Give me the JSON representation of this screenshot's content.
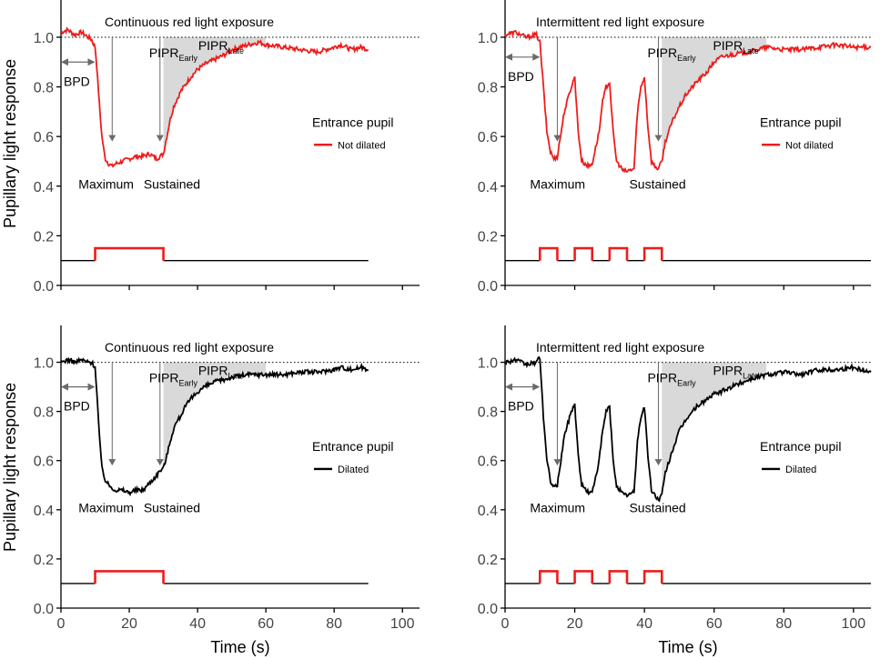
{
  "figure": {
    "ylabel": "Pupillary light response",
    "xlabel": "Time (s)",
    "reference_line": 1.0
  },
  "colors": {
    "red": "#ee1c1c",
    "black": "#000000",
    "shade": "#d9d9d9",
    "arrow": "#6a6a6a"
  },
  "chart_data": [
    {
      "type": "line",
      "panel": "top-left",
      "title": "Continuous red light exposure",
      "xlabel": "",
      "ylabel": "Pupillary light response",
      "xlim": [
        0,
        105
      ],
      "ylim": [
        0,
        1.15
      ],
      "xticks": [
        0,
        20,
        40,
        60,
        80,
        100
      ],
      "yticks": [
        "0.0",
        "0.2",
        "0.4",
        "0.6",
        "0.8",
        "1.0"
      ],
      "show_x_tick_labels": false,
      "legend": {
        "title": "Entrance pupil",
        "label": "Not dilated",
        "color": "red"
      },
      "series_color": "red",
      "x": [
        0,
        2,
        4,
        6,
        8,
        9,
        10,
        10.5,
        11,
        11.5,
        12,
        12.5,
        13,
        14,
        15,
        16,
        18,
        20,
        22,
        24,
        26,
        28,
        29,
        30,
        31,
        32,
        33,
        34,
        35,
        36,
        38,
        40,
        42,
        45,
        48,
        50,
        55,
        58,
        60,
        65,
        70,
        75,
        80,
        82,
        85,
        88,
        90
      ],
      "y": [
        1.02,
        1.03,
        1.01,
        1.02,
        1.0,
        0.99,
        0.96,
        0.88,
        0.78,
        0.68,
        0.6,
        0.55,
        0.51,
        0.49,
        0.48,
        0.49,
        0.5,
        0.51,
        0.52,
        0.52,
        0.53,
        0.51,
        0.52,
        0.53,
        0.6,
        0.67,
        0.72,
        0.75,
        0.78,
        0.8,
        0.84,
        0.87,
        0.89,
        0.91,
        0.93,
        0.95,
        0.97,
        0.98,
        0.97,
        0.96,
        0.95,
        0.94,
        0.96,
        0.97,
        0.95,
        0.96,
        0.95
      ],
      "stimulus": [
        [
          10,
          30
        ]
      ],
      "stimulus_baseline": 0.1,
      "stimulus_on_level": 0.15,
      "annotations": {
        "bpd": "BPD",
        "bpd_span": [
          0,
          10
        ],
        "bpd_y": 0.9,
        "maximum": "Maximum",
        "maximum_x": 15,
        "sustained": "Sustained",
        "sustained_x": 29,
        "pipr_early_main": "PIPR",
        "pipr_early_sub": "Early",
        "pipr_late_main": "PIPR",
        "pipr_late_sub": "Late",
        "shade_from": 30,
        "shade_to": 60
      }
    },
    {
      "type": "line",
      "panel": "top-right",
      "title": "Intermittent red light exposure",
      "xlabel": "",
      "ylabel": "",
      "xlim": [
        0,
        105
      ],
      "ylim": [
        0,
        1.15
      ],
      "xticks": [
        0,
        20,
        40,
        60,
        80,
        100
      ],
      "yticks": [
        "0.0",
        "0.2",
        "0.4",
        "0.6",
        "0.8",
        "1.0"
      ],
      "show_x_tick_labels": false,
      "legend": {
        "title": "Entrance pupil",
        "label": "Not dilated",
        "color": "red"
      },
      "series_color": "red",
      "x": [
        0,
        3,
        6,
        9,
        10,
        11,
        12,
        13,
        14,
        15,
        17,
        19,
        20,
        21,
        22,
        24,
        25,
        27,
        28,
        29,
        30,
        31,
        32,
        34,
        35,
        37,
        38,
        39,
        40,
        41,
        42,
        43,
        44,
        45,
        46,
        48,
        50,
        52,
        55,
        58,
        60,
        62,
        65,
        70,
        75,
        80,
        85,
        90,
        95,
        100,
        105
      ],
      "y": [
        1.01,
        1.02,
        1.0,
        1.01,
        0.98,
        0.8,
        0.62,
        0.54,
        0.51,
        0.52,
        0.7,
        0.8,
        0.84,
        0.62,
        0.5,
        0.48,
        0.49,
        0.62,
        0.74,
        0.8,
        0.82,
        0.62,
        0.5,
        0.46,
        0.46,
        0.47,
        0.7,
        0.8,
        0.84,
        0.64,
        0.5,
        0.48,
        0.47,
        0.5,
        0.58,
        0.66,
        0.72,
        0.77,
        0.82,
        0.86,
        0.9,
        0.92,
        0.93,
        0.94,
        0.96,
        0.95,
        0.95,
        0.96,
        0.97,
        0.96,
        0.96
      ],
      "stimulus": [
        [
          10,
          15
        ],
        [
          20,
          25
        ],
        [
          30,
          35
        ],
        [
          40,
          45
        ]
      ],
      "stimulus_baseline": 0.1,
      "stimulus_on_level": 0.15,
      "annotations": {
        "bpd": "BPD",
        "bpd_span": [
          0,
          10
        ],
        "bpd_y": 0.92,
        "maximum": "Maximum",
        "maximum_x": 15,
        "sustained": "Sustained",
        "sustained_x": 44,
        "pipr_early_main": "PIPR",
        "pipr_early_sub": "Early",
        "pipr_late_main": "PIPR",
        "pipr_late_sub": "Late",
        "shade_from": 45,
        "shade_to": 75
      }
    },
    {
      "type": "line",
      "panel": "bottom-left",
      "title": "Continuous red light exposure",
      "xlabel": "Time (s)",
      "ylabel": "Pupillary light response",
      "xlim": [
        0,
        105
      ],
      "ylim": [
        0,
        1.15
      ],
      "xticks": [
        0,
        20,
        40,
        60,
        80,
        100
      ],
      "yticks": [
        "0.0",
        "0.2",
        "0.4",
        "0.6",
        "0.8",
        "1.0"
      ],
      "show_x_tick_labels": true,
      "legend": {
        "title": "Entrance pupil",
        "label": "Dilated",
        "color": "black"
      },
      "series_color": "black",
      "x": [
        0,
        2,
        4,
        6,
        8,
        9,
        10,
        10.5,
        11,
        11.5,
        12,
        13,
        14,
        15,
        16,
        18,
        20,
        22,
        24,
        26,
        28,
        29,
        30,
        31,
        32,
        33,
        34,
        35,
        36,
        38,
        40,
        42,
        45,
        48,
        50,
        55,
        60,
        65,
        70,
        75,
        80,
        82,
        85,
        88,
        90
      ],
      "y": [
        1.0,
        1.01,
        1.0,
        1.01,
        1.0,
        1.0,
        0.98,
        0.88,
        0.76,
        0.65,
        0.57,
        0.52,
        0.5,
        0.49,
        0.48,
        0.48,
        0.47,
        0.48,
        0.48,
        0.51,
        0.54,
        0.56,
        0.57,
        0.62,
        0.68,
        0.73,
        0.76,
        0.78,
        0.81,
        0.85,
        0.88,
        0.9,
        0.92,
        0.93,
        0.94,
        0.95,
        0.95,
        0.95,
        0.96,
        0.96,
        0.97,
        0.98,
        0.97,
        0.98,
        0.97
      ],
      "stimulus": [
        [
          10,
          30
        ]
      ],
      "stimulus_baseline": 0.1,
      "stimulus_on_level": 0.15,
      "annotations": {
        "bpd": "BPD",
        "bpd_span": [
          0,
          10
        ],
        "bpd_y": 0.9,
        "maximum": "Maximum",
        "maximum_x": 15,
        "sustained": "Sustained",
        "sustained_x": 29,
        "pipr_early_main": "PIPR",
        "pipr_early_sub": "Early",
        "pipr_late_main": "PIPR",
        "pipr_late_sub": "Late",
        "shade_from": 30,
        "shade_to": 60
      }
    },
    {
      "type": "line",
      "panel": "bottom-right",
      "title": "Intermittent red light exposure",
      "xlabel": "Time (s)",
      "ylabel": "",
      "xlim": [
        0,
        105
      ],
      "ylim": [
        0,
        1.15
      ],
      "xticks": [
        0,
        20,
        40,
        60,
        80,
        100
      ],
      "yticks": [
        "0.0",
        "0.2",
        "0.4",
        "0.6",
        "0.8",
        "1.0"
      ],
      "show_x_tick_labels": true,
      "legend": {
        "title": "Entrance pupil",
        "label": "Dilated",
        "color": "black"
      },
      "series_color": "black",
      "x": [
        0,
        3,
        6,
        9,
        10,
        11,
        12,
        13,
        14,
        15,
        17,
        19,
        20,
        21,
        22,
        24,
        25,
        27,
        28,
        29,
        30,
        31,
        32,
        34,
        35,
        37,
        38,
        39,
        40,
        41,
        42,
        43,
        44,
        45,
        46,
        48,
        50,
        52,
        55,
        58,
        60,
        62,
        65,
        70,
        75,
        80,
        85,
        90,
        95,
        100,
        105
      ],
      "y": [
        1.0,
        1.01,
        0.99,
        1.0,
        1.02,
        0.78,
        0.6,
        0.52,
        0.49,
        0.5,
        0.7,
        0.8,
        0.83,
        0.62,
        0.5,
        0.47,
        0.47,
        0.6,
        0.72,
        0.8,
        0.82,
        0.6,
        0.5,
        0.46,
        0.46,
        0.47,
        0.68,
        0.78,
        0.82,
        0.62,
        0.48,
        0.46,
        0.44,
        0.46,
        0.55,
        0.64,
        0.72,
        0.77,
        0.82,
        0.85,
        0.87,
        0.88,
        0.9,
        0.93,
        0.95,
        0.96,
        0.95,
        0.97,
        0.97,
        0.98,
        0.96
      ],
      "stimulus": [
        [
          10,
          15
        ],
        [
          20,
          25
        ],
        [
          30,
          35
        ],
        [
          40,
          45
        ]
      ],
      "stimulus_baseline": 0.1,
      "stimulus_on_level": 0.15,
      "annotations": {
        "bpd": "BPD",
        "bpd_span": [
          0,
          10
        ],
        "bpd_y": 0.9,
        "maximum": "Maximum",
        "maximum_x": 15,
        "sustained": "Sustained",
        "sustained_x": 44,
        "pipr_early_main": "PIPR",
        "pipr_early_sub": "Early",
        "pipr_late_main": "PIPR",
        "pipr_late_sub": "Late",
        "shade_from": 45,
        "shade_to": 75
      }
    }
  ]
}
